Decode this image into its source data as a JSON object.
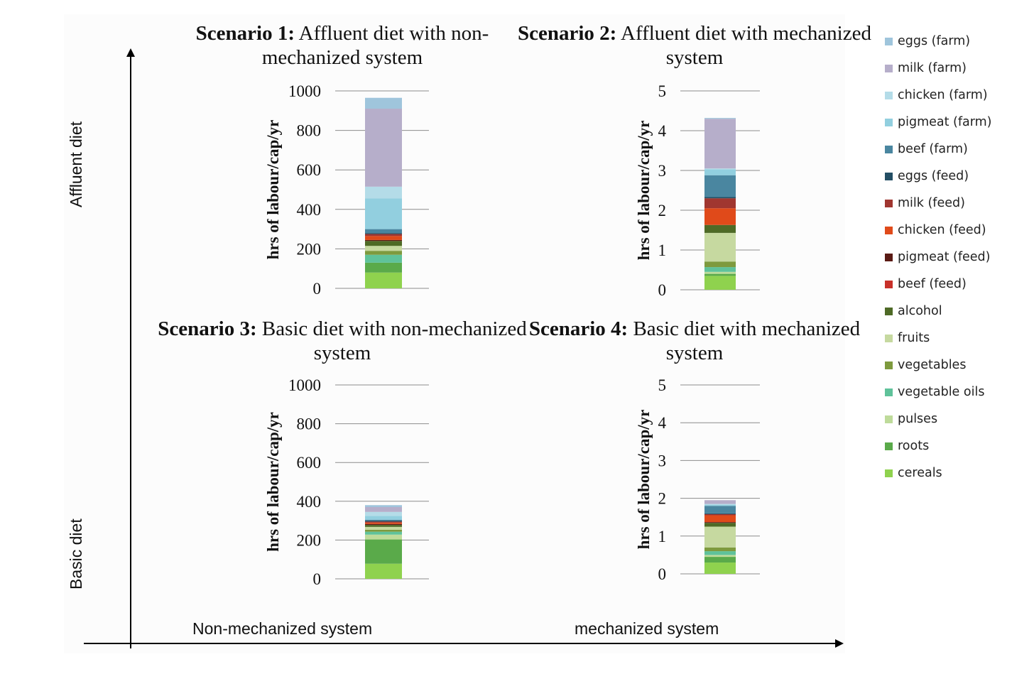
{
  "axis_captions": {
    "y_top": "Affluent diet",
    "y_bottom": "Basic diet",
    "x_left": "Non-mechanized system",
    "x_right": "mechanized system"
  },
  "legend": [
    {
      "label": "eggs (farm)",
      "color": "#9fc5dc"
    },
    {
      "label": "milk (farm)",
      "color": "#b6aeca"
    },
    {
      "label": "chicken (farm)",
      "color": "#b4dce8"
    },
    {
      "label": "pigmeat (farm)",
      "color": "#92cfdf"
    },
    {
      "label": "beef (farm)",
      "color": "#4a86a0"
    },
    {
      "label": "eggs (feed)",
      "color": "#234e64"
    },
    {
      "label": "milk (feed)",
      "color": "#a03630"
    },
    {
      "label": "chicken (feed)",
      "color": "#e04a1a"
    },
    {
      "label": "pigmeat (feed)",
      "color": "#5a1a14"
    },
    {
      "label": "beef (feed)",
      "color": "#c8312a"
    },
    {
      "label": "alcohol",
      "color": "#4e6a26"
    },
    {
      "label": "fruits",
      "color": "#c6d9a0"
    },
    {
      "label": "vegetables",
      "color": "#7e9a3e"
    },
    {
      "label": "vegetable oils",
      "color": "#5fc29a"
    },
    {
      "label": "pulses",
      "color": "#bedb9a"
    },
    {
      "label": "roots",
      "color": "#5aaa4a"
    },
    {
      "label": "cereals",
      "color": "#8fd24e"
    }
  ],
  "chart_data": [
    {
      "type": "bar",
      "stacked": true,
      "title_bold": "Scenario 1:",
      "title_rest": "Affluent diet with non-mechanized system",
      "ylabel": "hrs of labour/cap/yr",
      "ylim": [
        0,
        1000
      ],
      "yticks": [
        "0",
        "200",
        "400",
        "600",
        "800",
        "1000"
      ],
      "series": [
        {
          "name": "cereals",
          "value": 80
        },
        {
          "name": "roots",
          "value": 50
        },
        {
          "name": "pulses",
          "value": 0
        },
        {
          "name": "vegetable oils",
          "value": 40
        },
        {
          "name": "vegetables",
          "value": 20
        },
        {
          "name": "fruits",
          "value": 25
        },
        {
          "name": "alcohol",
          "value": 25
        },
        {
          "name": "beef (feed)",
          "value": 0
        },
        {
          "name": "pigmeat (feed)",
          "value": 5
        },
        {
          "name": "chicken (feed)",
          "value": 20
        },
        {
          "name": "milk (feed)",
          "value": 10
        },
        {
          "name": "eggs (feed)",
          "value": 5
        },
        {
          "name": "beef (farm)",
          "value": 20
        },
        {
          "name": "pigmeat (farm)",
          "value": 155
        },
        {
          "name": "chicken (farm)",
          "value": 60
        },
        {
          "name": "milk (farm)",
          "value": 395
        },
        {
          "name": "eggs (farm)",
          "value": 55
        }
      ]
    },
    {
      "type": "bar",
      "stacked": true,
      "title_bold": "Scenario 2:",
      "title_rest": "Affluent diet with mechanized system",
      "ylabel": "hrs of labour/cap/yr",
      "ylim": [
        0,
        5
      ],
      "yticks": [
        "0",
        "1",
        "2",
        "3",
        "4",
        "5"
      ],
      "series": [
        {
          "name": "cereals",
          "value": 0.35
        },
        {
          "name": "roots",
          "value": 0.05
        },
        {
          "name": "pulses",
          "value": 0.05
        },
        {
          "name": "vegetable oils",
          "value": 0.12
        },
        {
          "name": "vegetables",
          "value": 0.14
        },
        {
          "name": "fruits",
          "value": 0.72
        },
        {
          "name": "alcohol",
          "value": 0.2
        },
        {
          "name": "beef (feed)",
          "value": 0
        },
        {
          "name": "pigmeat (feed)",
          "value": 0
        },
        {
          "name": "chicken (feed)",
          "value": 0.42
        },
        {
          "name": "milk (feed)",
          "value": 0.25
        },
        {
          "name": "eggs (feed)",
          "value": 0.03
        },
        {
          "name": "beef (farm)",
          "value": 0.55
        },
        {
          "name": "pigmeat (farm)",
          "value": 0.15
        },
        {
          "name": "chicken (farm)",
          "value": 0.02
        },
        {
          "name": "milk (farm)",
          "value": 1.25
        },
        {
          "name": "eggs (farm)",
          "value": 0.02
        }
      ]
    },
    {
      "type": "bar",
      "stacked": true,
      "title_bold": "Scenario 3:",
      "title_rest": "Basic diet with non-mechanized system",
      "ylabel": "hrs of labour/cap/yr",
      "ylim": [
        0,
        1000
      ],
      "yticks": [
        "0",
        "200",
        "400",
        "600",
        "800",
        "1000"
      ],
      "series": [
        {
          "name": "cereals",
          "value": 78
        },
        {
          "name": "roots",
          "value": 125
        },
        {
          "name": "pulses",
          "value": 25
        },
        {
          "name": "vegetable oils",
          "value": 15
        },
        {
          "name": "vegetables",
          "value": 10
        },
        {
          "name": "fruits",
          "value": 15
        },
        {
          "name": "alcohol",
          "value": 10
        },
        {
          "name": "beef (feed)",
          "value": 0
        },
        {
          "name": "pigmeat (feed)",
          "value": 5
        },
        {
          "name": "chicken (feed)",
          "value": 7
        },
        {
          "name": "milk (feed)",
          "value": 5
        },
        {
          "name": "eggs (feed)",
          "value": 5
        },
        {
          "name": "beef (farm)",
          "value": 5
        },
        {
          "name": "pigmeat (farm)",
          "value": 20
        },
        {
          "name": "chicken (farm)",
          "value": 20
        },
        {
          "name": "milk (farm)",
          "value": 25
        },
        {
          "name": "eggs (farm)",
          "value": 10
        }
      ]
    },
    {
      "type": "bar",
      "stacked": true,
      "title_bold": "Scenario 4:",
      "title_rest": " Basic diet with mechanized system",
      "ylabel": "hrs of labour/cap/yr",
      "ylim": [
        0,
        5
      ],
      "yticks": [
        "0",
        "1",
        "2",
        "3",
        "4",
        "5"
      ],
      "series": [
        {
          "name": "cereals",
          "value": 0.3
        },
        {
          "name": "roots",
          "value": 0.15
        },
        {
          "name": "pulses",
          "value": 0.05
        },
        {
          "name": "vegetable oils",
          "value": 0.1
        },
        {
          "name": "vegetables",
          "value": 0.1
        },
        {
          "name": "fruits",
          "value": 0.55
        },
        {
          "name": "alcohol",
          "value": 0.1
        },
        {
          "name": "beef (feed)",
          "value": 0
        },
        {
          "name": "pigmeat (feed)",
          "value": 0.02
        },
        {
          "name": "chicken (feed)",
          "value": 0.18
        },
        {
          "name": "milk (feed)",
          "value": 0.03
        },
        {
          "name": "eggs (feed)",
          "value": 0.02
        },
        {
          "name": "beef (farm)",
          "value": 0.2
        },
        {
          "name": "pigmeat (farm)",
          "value": 0.03
        },
        {
          "name": "chicken (farm)",
          "value": 0.02
        },
        {
          "name": "milk (farm)",
          "value": 0.1
        },
        {
          "name": "eggs (farm)",
          "value": 0
        }
      ]
    }
  ]
}
